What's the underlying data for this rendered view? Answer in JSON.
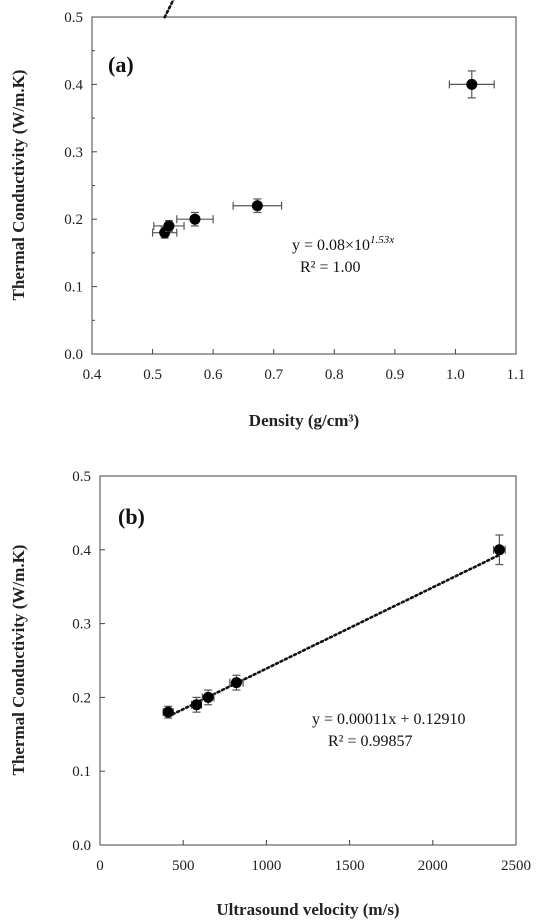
{
  "chart_data": [
    {
      "type": "scatter",
      "panel_label": "(a)",
      "xlabel": "Density  (g/cm³)",
      "ylabel": "Thermal Conductivity (W/m.K)",
      "xlim": [
        0.4,
        1.1
      ],
      "ylim": [
        0.0,
        0.5
      ],
      "x_ticks": [
        "0.4",
        "0.5",
        "0.6",
        "0.7",
        "0.8",
        "0.9",
        "1.0",
        "1.1"
      ],
      "y_ticks": [
        "0.0",
        "0.1",
        "0.2",
        "0.3",
        "0.4",
        "0.5"
      ],
      "grid": false,
      "points": [
        {
          "x": 0.52,
          "y": 0.18,
          "xerr": 0.02,
          "yerr": 0.008
        },
        {
          "x": 0.527,
          "y": 0.19,
          "xerr": 0.025,
          "yerr": 0.008
        },
        {
          "x": 0.57,
          "y": 0.2,
          "xerr": 0.03,
          "yerr": 0.01
        },
        {
          "x": 0.673,
          "y": 0.22,
          "xerr": 0.04,
          "yerr": 0.01
        },
        {
          "x": 1.027,
          "y": 0.4,
          "xerr": 0.037,
          "yerr": 0.02
        }
      ],
      "trendline": {
        "kind": "exponential",
        "a": 0.08,
        "b": 1.53
      },
      "equation_prefix": "y = 0.08×10",
      "equation_exponent": "1.53x",
      "r2": "R² = 1.00"
    },
    {
      "type": "scatter",
      "panel_label": "(b)",
      "xlabel": "Ultrasound velocity (m/s)",
      "ylabel": "Thermal Conductivity (W/m.K)",
      "xlim": [
        0,
        2500
      ],
      "ylim": [
        0.0,
        0.5
      ],
      "x_ticks": [
        "0",
        "500",
        "1000",
        "1500",
        "2000",
        "2500"
      ],
      "y_ticks": [
        "0.0",
        "0.1",
        "0.2",
        "0.3",
        "0.4",
        "0.5"
      ],
      "grid": false,
      "points": [
        {
          "x": 410,
          "y": 0.18,
          "xerr": 30,
          "yerr": 0.008
        },
        {
          "x": 580,
          "y": 0.19,
          "xerr": 30,
          "yerr": 0.01
        },
        {
          "x": 650,
          "y": 0.2,
          "xerr": 35,
          "yerr": 0.01
        },
        {
          "x": 820,
          "y": 0.22,
          "xerr": 40,
          "yerr": 0.01
        },
        {
          "x": 2400,
          "y": 0.4,
          "xerr": 35,
          "yerr": 0.02
        }
      ],
      "trendline": {
        "kind": "linear",
        "slope": 0.00011,
        "intercept": 0.1291
      },
      "equation": "y = 0.00011x + 0.12910",
      "r2": "R² = 0.99857"
    }
  ]
}
